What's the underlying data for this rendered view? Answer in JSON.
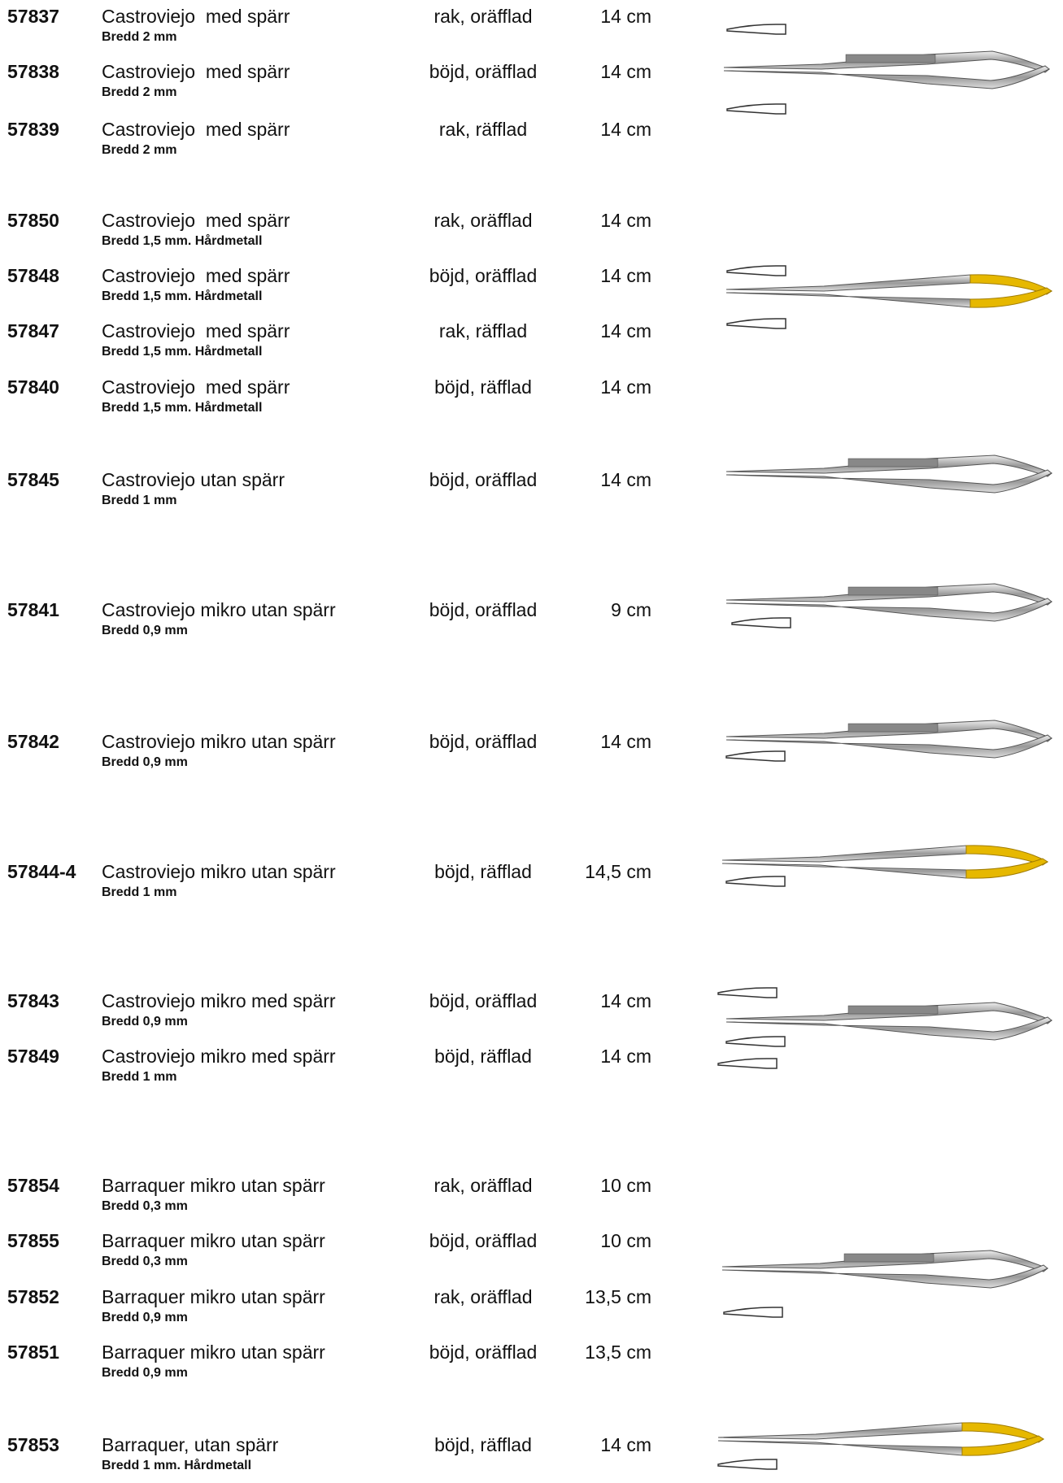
{
  "rows": [
    {
      "code": "57837",
      "name": "Castroviejo  med spärr",
      "sub": "Bredd 2 mm",
      "type": "rak, oräfflad",
      "length": "14 cm"
    },
    {
      "code": "57838",
      "name": "Castroviejo  med spärr",
      "sub": "Bredd 2 mm",
      "type": "böjd, oräfflad",
      "length": "14 cm"
    },
    {
      "code": "57839",
      "name": "Castroviejo  med spärr",
      "sub": "Bredd 2 mm",
      "type": "rak, räfflad",
      "length": "14 cm"
    },
    {
      "code": "57850",
      "name": "Castroviejo  med spärr",
      "sub": "Bredd 1,5 mm. Hårdmetall",
      "type": "rak, oräfflad",
      "length": "14 cm"
    },
    {
      "code": "57848",
      "name": "Castroviejo  med spärr",
      "sub": "Bredd 1,5 mm. Hårdmetall",
      "type": "böjd, oräfflad",
      "length": "14 cm"
    },
    {
      "code": "57847",
      "name": "Castroviejo  med spärr",
      "sub": "Bredd 1,5 mm. Hårdmetall",
      "type": "rak, räfflad",
      "length": "14 cm"
    },
    {
      "code": "57840",
      "name": "Castroviejo  med spärr",
      "sub": "Bredd 1,5 mm. Hårdmetall",
      "type": "böjd, räfflad",
      "length": "14 cm"
    },
    {
      "code": "57845",
      "name": "Castroviejo utan spärr",
      "sub": "Bredd 1 mm",
      "type": "böjd, oräfflad",
      "length": "14 cm"
    },
    {
      "code": "57841",
      "name": "Castroviejo mikro utan spärr",
      "sub": "Bredd 0,9 mm",
      "type": "böjd, oräfflad",
      "length": "9 cm"
    },
    {
      "code": "57842",
      "name": "Castroviejo mikro utan spärr",
      "sub": "Bredd 0,9 mm",
      "type": "böjd, oräfflad",
      "length": "14 cm"
    },
    {
      "code": "57844-4",
      "name": "Castroviejo mikro utan spärr",
      "sub": "Bredd 1 mm",
      "type": "böjd, räfflad",
      "length": "14,5 cm"
    },
    {
      "code": "57843",
      "name": "Castroviejo mikro med spärr",
      "sub": "Bredd 0,9 mm",
      "type": "böjd, oräfflad",
      "length": "14 cm"
    },
    {
      "code": "57849",
      "name": "Castroviejo mikro med spärr",
      "sub": "Bredd 1 mm",
      "type": "böjd, räfflad",
      "length": "14 cm"
    },
    {
      "code": "57854",
      "name": "Barraquer mikro utan spärr",
      "sub": "Bredd 0,3 mm",
      "type": "rak, oräfflad",
      "length": "10 cm"
    },
    {
      "code": "57855",
      "name": "Barraquer mikro utan spärr",
      "sub": "Bredd 0,3 mm",
      "type": "böjd, oräfflad",
      "length": "10 cm"
    },
    {
      "code": "57852",
      "name": "Barraquer mikro utan spärr",
      "sub": "Bredd 0,9 mm",
      "type": "rak, oräfflad",
      "length": "13,5 cm"
    },
    {
      "code": "57851",
      "name": "Barraquer mikro utan spärr",
      "sub": "Bredd 0,9 mm",
      "type": "böjd, oräfflad",
      "length": "13,5 cm"
    },
    {
      "code": "57853",
      "name": "Barraquer, utan spärr",
      "sub": "Bredd 1 mm. Hårdmetall",
      "type": "böjd, räfflad",
      "length": "14 cm"
    }
  ]
}
